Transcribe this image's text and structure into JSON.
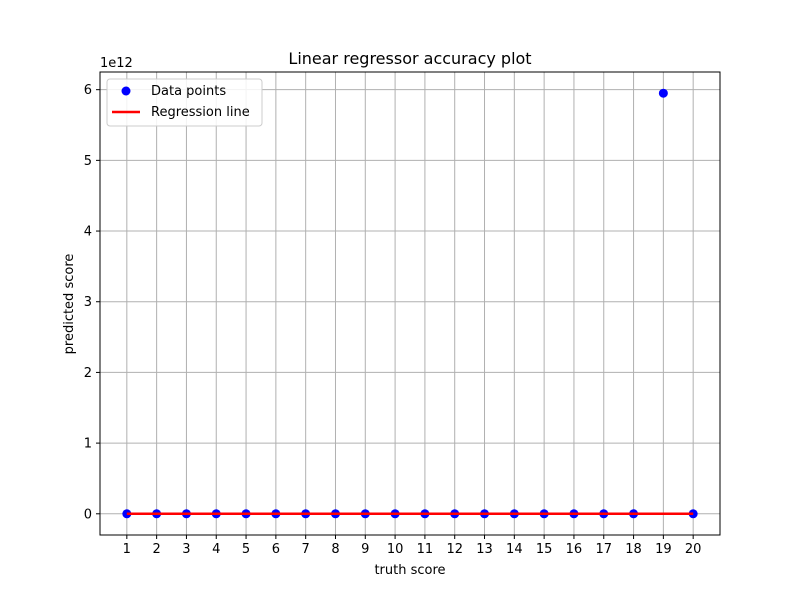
{
  "chart_data": {
    "type": "scatter",
    "title": "Linear regressor accuracy plot",
    "xlabel": "truth score",
    "ylabel": "predicted score",
    "y_offset_label": "1e12",
    "xlim": [
      0.1,
      20.9
    ],
    "ylim": [
      -0.3,
      6.25
    ],
    "y_scale_note": "values shown in units of 1e12",
    "x_ticks": [
      1,
      2,
      3,
      4,
      5,
      6,
      7,
      8,
      9,
      10,
      11,
      12,
      13,
      14,
      15,
      16,
      17,
      18,
      19,
      20
    ],
    "y_ticks": [
      0,
      1,
      2,
      3,
      4,
      5,
      6
    ],
    "grid": true,
    "legend_position": "top-left",
    "series": [
      {
        "name": "Data points",
        "kind": "scatter",
        "color": "#0000ff",
        "x": [
          1,
          2,
          3,
          4,
          5,
          6,
          7,
          8,
          9,
          10,
          11,
          12,
          13,
          14,
          15,
          16,
          17,
          18,
          19,
          20
        ],
        "y": [
          0,
          0,
          0,
          0,
          0,
          0,
          0,
          0,
          0,
          0,
          0,
          0,
          0,
          0,
          0,
          0,
          0,
          0,
          5.95,
          0
        ]
      },
      {
        "name": "Regression line",
        "kind": "line",
        "color": "#ff0000",
        "x": [
          1,
          20
        ],
        "y": [
          0,
          0
        ]
      }
    ]
  }
}
